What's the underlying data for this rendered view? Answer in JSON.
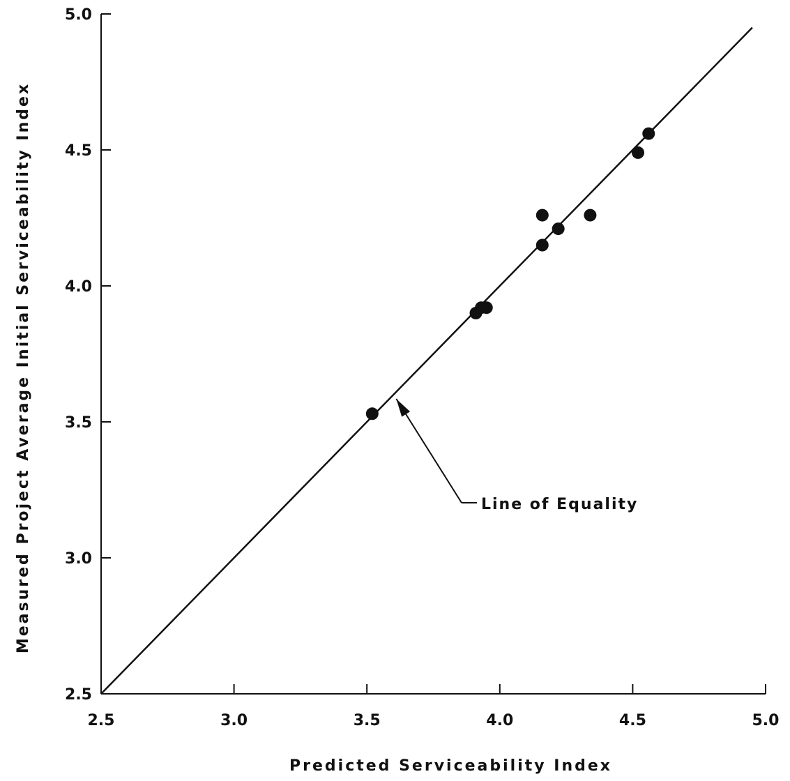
{
  "chart_data": {
    "type": "scatter",
    "title": "",
    "xlabel": "Predicted Serviceability Index",
    "ylabel": "Measured Project Average Initial Serviceability Index",
    "xlim": [
      2.5,
      5.0
    ],
    "ylim": [
      2.5,
      5.0
    ],
    "x_ticks": [
      "2.5",
      "3.0",
      "3.5",
      "4.0",
      "4.5",
      "5.0"
    ],
    "y_ticks": [
      "2.5",
      "3.0",
      "3.5",
      "4.0",
      "4.5",
      "5.0"
    ],
    "grid": false,
    "points": [
      {
        "x": 3.52,
        "y": 3.53
      },
      {
        "x": 3.91,
        "y": 3.9
      },
      {
        "x": 3.93,
        "y": 3.92
      },
      {
        "x": 3.95,
        "y": 3.92
      },
      {
        "x": 4.16,
        "y": 4.15
      },
      {
        "x": 4.16,
        "y": 4.26
      },
      {
        "x": 4.22,
        "y": 4.21
      },
      {
        "x": 4.34,
        "y": 4.26
      },
      {
        "x": 4.52,
        "y": 4.49
      },
      {
        "x": 4.56,
        "y": 4.56
      }
    ],
    "reference_line": {
      "name": "Line of Equality",
      "from": [
        2.5,
        2.5
      ],
      "to": [
        4.95,
        4.95
      ]
    },
    "annotations": [
      {
        "text": "Line of Equality",
        "target": [
          3.6,
          3.6
        ]
      }
    ],
    "color": "#111111"
  }
}
